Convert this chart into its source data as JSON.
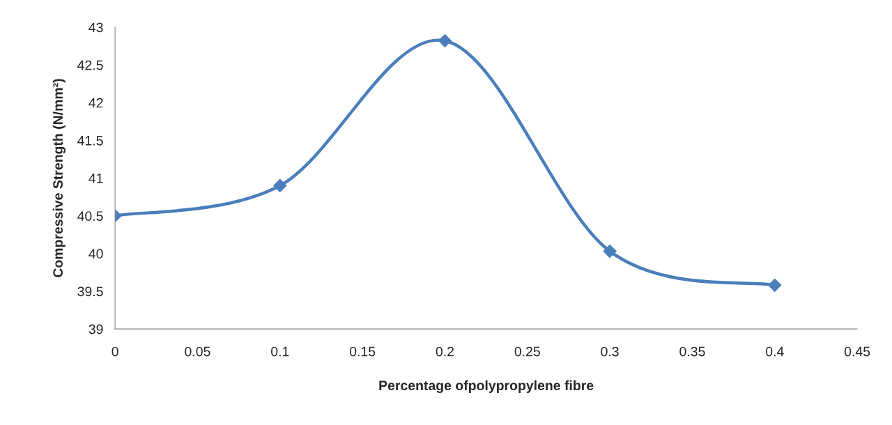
{
  "chart_data": {
    "type": "line",
    "xlabel": "Percentage ofpolypropylene fibre",
    "ylabel": "Compressive Strength (N/mm²)",
    "x": [
      0,
      0.1,
      0.2,
      0.3,
      0.4
    ],
    "series": [
      {
        "color": "#4a7ebb",
        "values": [
          40.5,
          40.9,
          42.82,
          40.03,
          39.58
        ]
      }
    ],
    "xlim": [
      0,
      0.45
    ],
    "xticks": [
      0,
      0.05,
      0.1,
      0.15,
      0.2,
      0.25,
      0.3,
      0.35,
      0.4,
      0.45
    ],
    "ylim": [
      39,
      43
    ],
    "yticks": [
      39,
      39.5,
      40,
      40.5,
      41,
      41.5,
      42,
      42.5,
      43
    ],
    "grid": false,
    "legend": false,
    "marker": "diamond",
    "line_style": "solid"
  }
}
